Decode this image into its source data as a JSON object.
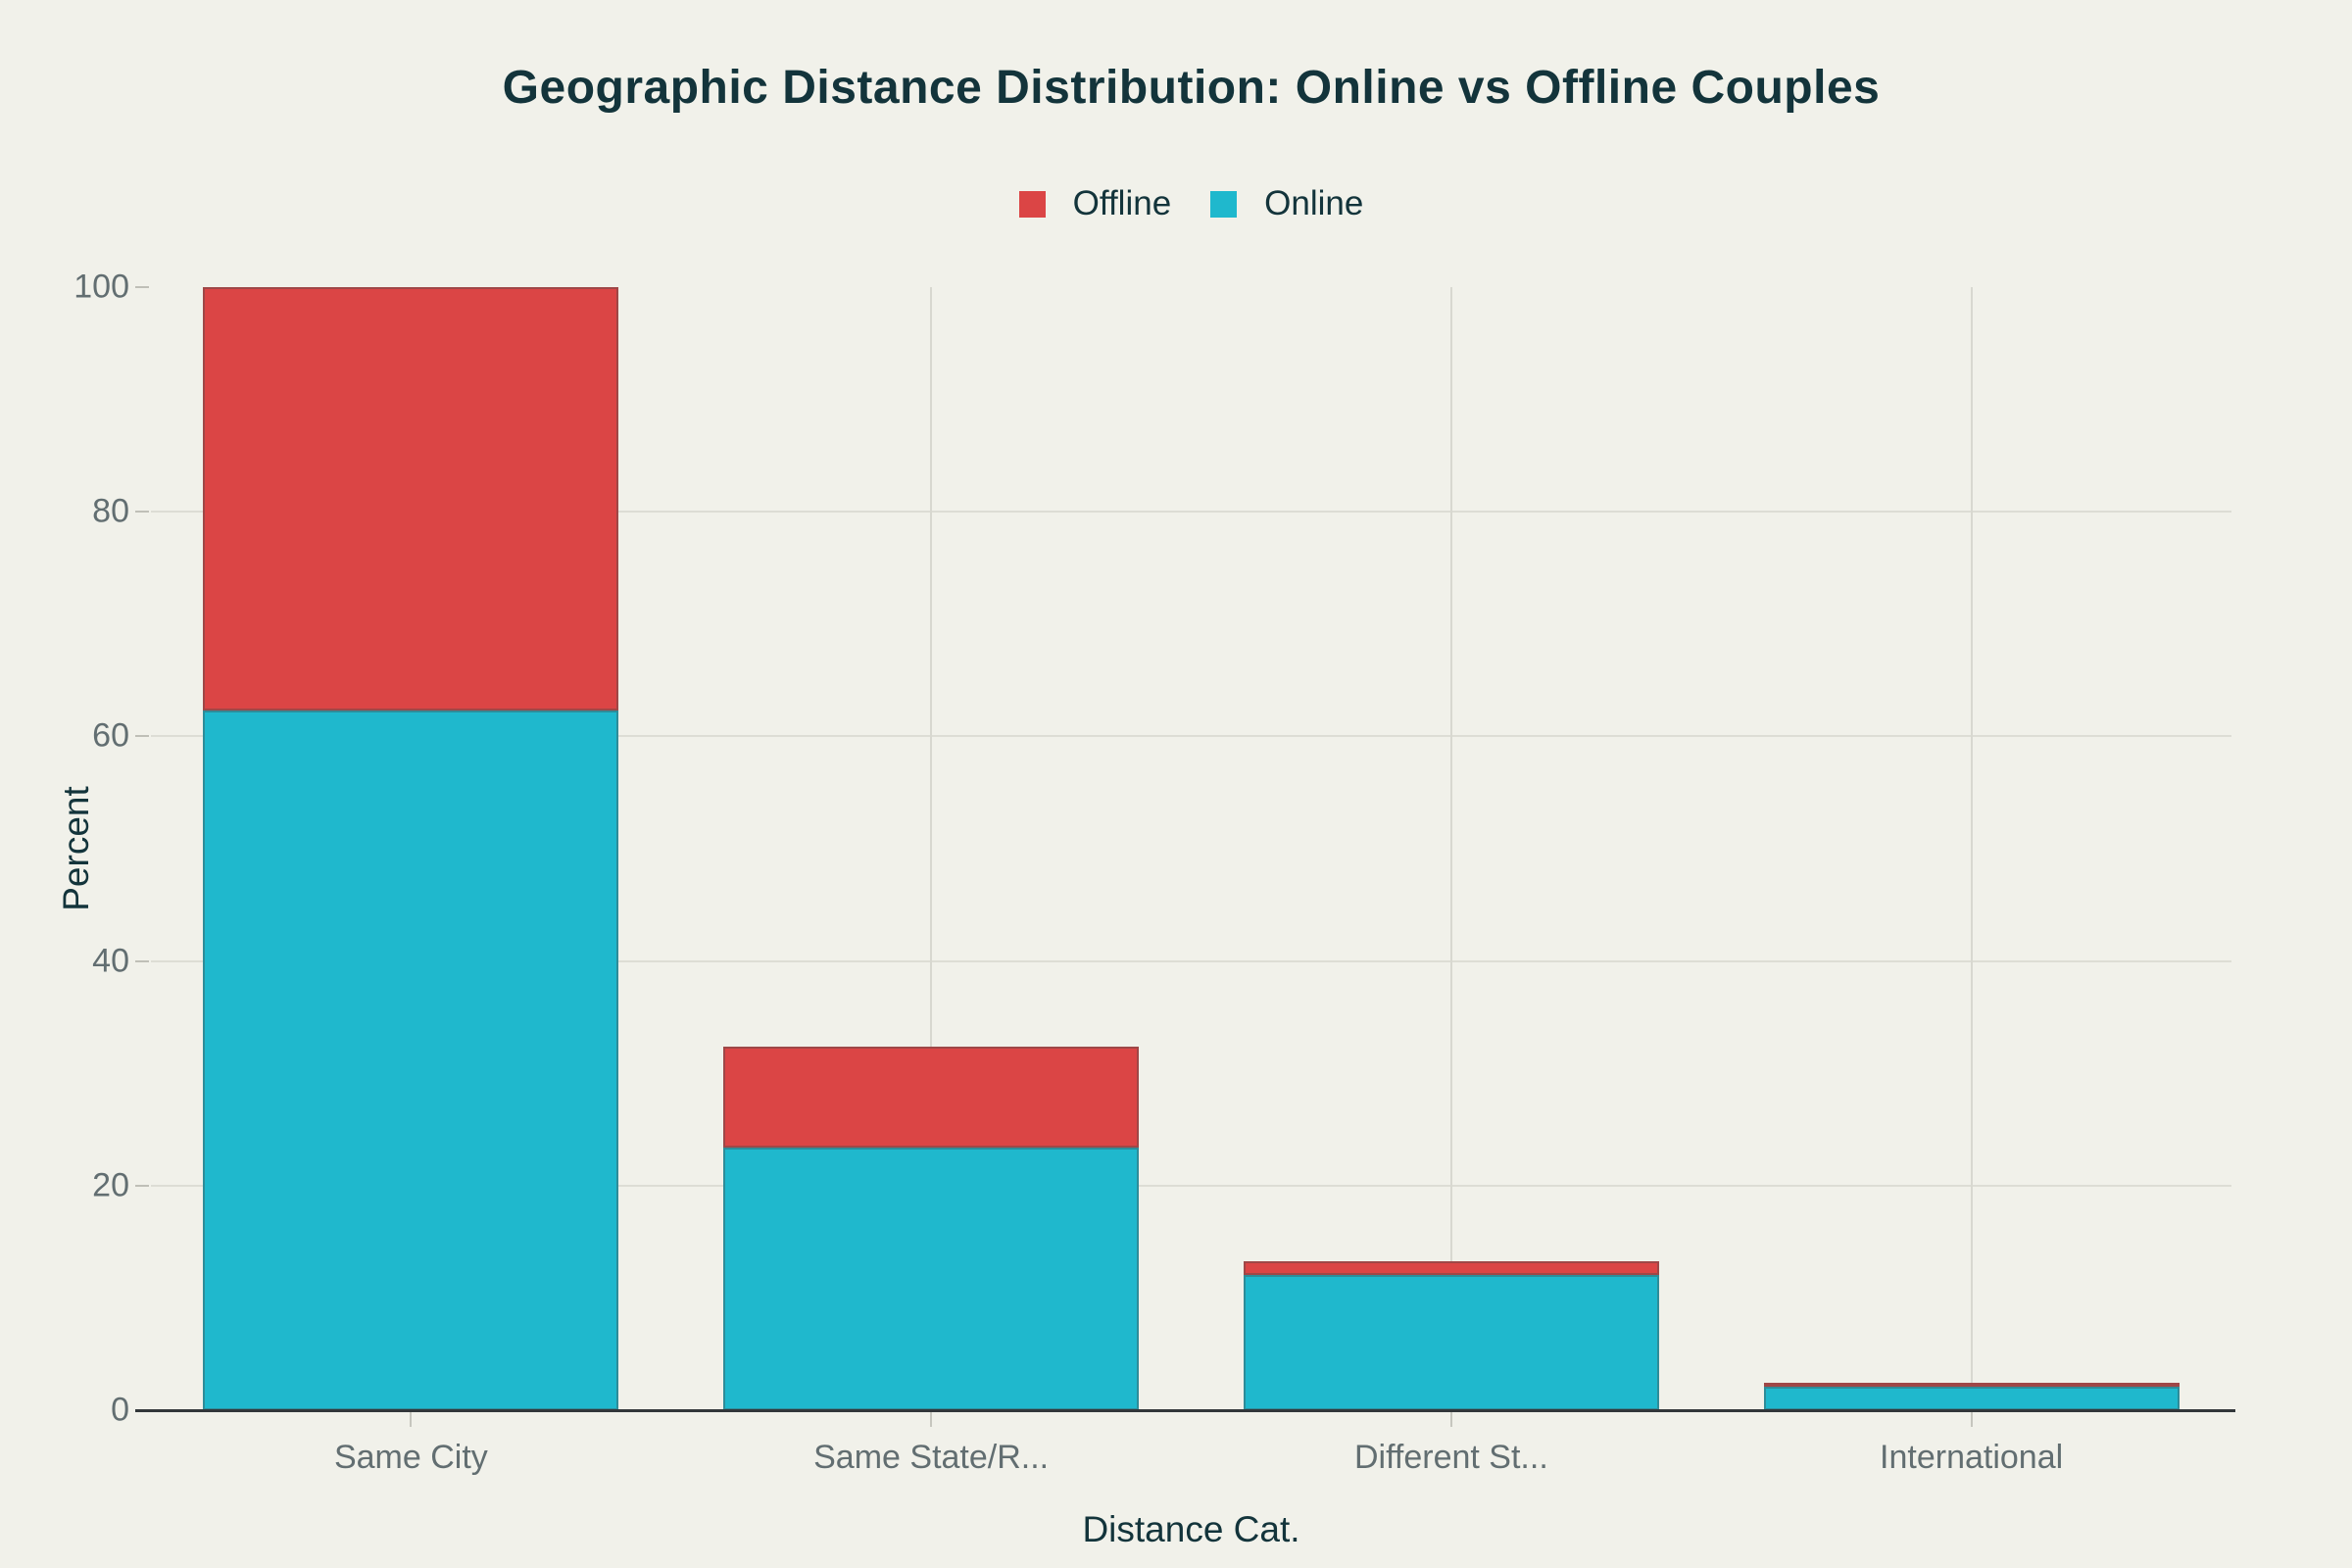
{
  "page": {
    "background_color": "#F1F1EA"
  },
  "title": "Geographic Distance Distribution: Online vs Offline Couples",
  "legend": {
    "position": "top-center",
    "items": [
      {
        "label": "Offline",
        "color": "#DB4545"
      },
      {
        "label": "Online",
        "color": "#1FB8CD"
      }
    ]
  },
  "axes": {
    "y_title": "Percent",
    "x_title": "Distance Cat.",
    "y_ticks": [
      0,
      20,
      40,
      60,
      80,
      100
    ],
    "x_tick_labels": [
      "Same City",
      "Same State/R...",
      "Different St...",
      "International"
    ],
    "tick_text_color": "#626E71",
    "axis_title_color": "#13343B",
    "gridline_color": "#DDDDD5",
    "baseline_color": "#32373A"
  },
  "chart_data": {
    "type": "bar",
    "stacked": true,
    "title": "Geographic Distance Distribution: Online vs Offline Couples",
    "xlabel": "Distance Cat.",
    "ylabel": "Percent",
    "ylim": [
      0,
      100
    ],
    "yticks": [
      0,
      20,
      40,
      60,
      80,
      100
    ],
    "grid": true,
    "legend_position": "top-center",
    "categories": [
      "Same City",
      "Same State/R...",
      "Different St...",
      "International"
    ],
    "series": [
      {
        "name": "Online",
        "color": "#1FB8CD",
        "values": [
          62.3,
          23.4,
          12.0,
          2.1
        ]
      },
      {
        "name": "Offline",
        "color": "#DB4545",
        "values": [
          37.7,
          9.0,
          1.3,
          0.2
        ]
      }
    ],
    "stack_totals": [
      100.0,
      32.4,
      13.3,
      2.3
    ]
  }
}
